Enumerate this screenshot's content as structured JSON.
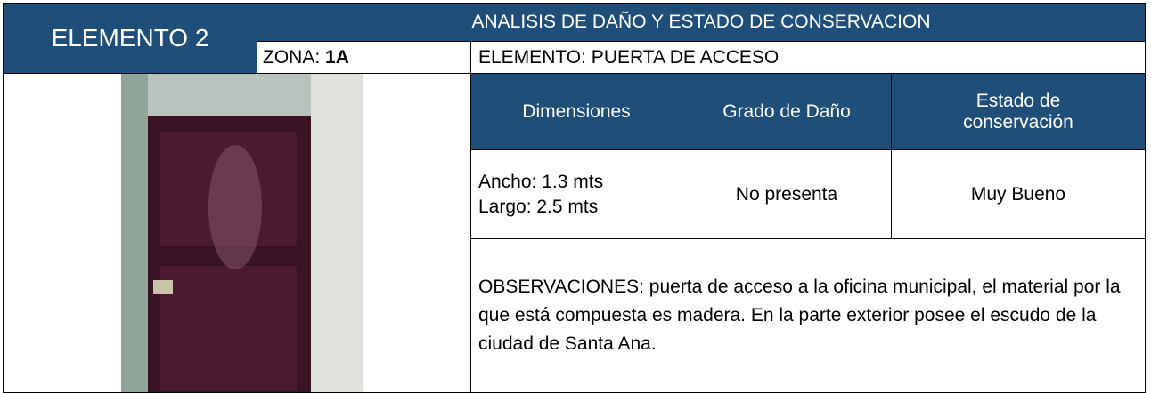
{
  "header": {
    "element": "ELEMENTO 2",
    "title": "ANALISIS DE DAÑO Y ESTADO DE CONSERVACION",
    "zona_label": "ZONA:",
    "zona_value": "1A",
    "elemento": "ELEMENTO: PUERTA DE ACCESO"
  },
  "table": {
    "headers": [
      "Dimensiones",
      "Grado de Daño",
      "Estado de conservación"
    ],
    "rows": [
      [
        [
          "Ancho: 1.3 mts",
          "Largo: 2.5 mts"
        ],
        "No presenta",
        "Muy Bueno"
      ]
    ]
  },
  "observaciones": "OBSERVACIONES: puerta de acceso a la oficina municipal, el material por la que está compuesta es madera. En la parte exterior posee el escudo de la ciudad de Santa Ana."
}
